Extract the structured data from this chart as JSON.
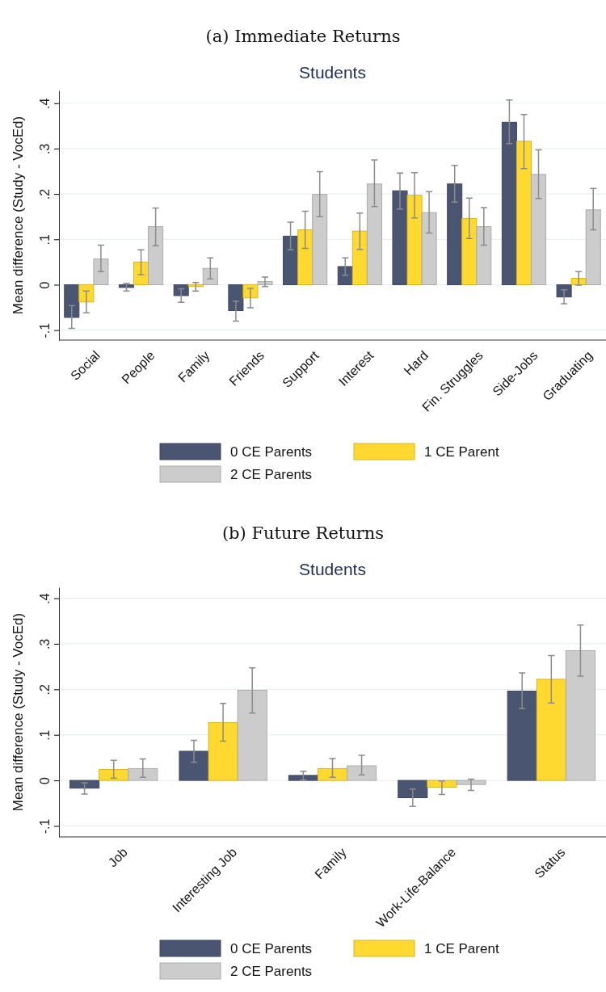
{
  "chart_data": [
    {
      "type": "bar",
      "title": "(a) Immediate Returns",
      "subtitle": "Students",
      "ylabel": "Mean difference (Study - VocEd)",
      "categories": [
        "Social",
        "People",
        "Family",
        "Friends",
        "Support",
        "Interest",
        "Hard",
        "Fin. Struggles",
        "Side-Jobs",
        "Graduating"
      ],
      "series": [
        {
          "name": "0 CE Parents",
          "color": "#4a5572",
          "values": [
            -0.072,
            -0.006,
            -0.024,
            -0.057,
            0.107,
            0.04,
            0.207,
            0.222,
            0.358,
            -0.027
          ],
          "errors": [
            [
              -0.096,
              -0.046
            ],
            [
              -0.014,
              0.003
            ],
            [
              -0.039,
              -0.009
            ],
            [
              -0.08,
              -0.036
            ],
            [
              0.077,
              0.138
            ],
            [
              0.021,
              0.059
            ],
            [
              0.167,
              0.246
            ],
            [
              0.182,
              0.263
            ],
            [
              0.311,
              0.407
            ],
            [
              -0.042,
              -0.011
            ]
          ]
        },
        {
          "name": "1 CE Parent",
          "color": "#ffd92f",
          "values": [
            -0.038,
            0.05,
            -0.004,
            -0.029,
            0.121,
            0.118,
            0.197,
            0.146,
            0.316,
            0.014
          ],
          "errors": [
            [
              -0.062,
              -0.014
            ],
            [
              0.022,
              0.077
            ],
            [
              -0.014,
              0.005
            ],
            [
              -0.051,
              -0.008
            ],
            [
              0.08,
              0.162
            ],
            [
              0.078,
              0.158
            ],
            [
              0.147,
              0.247
            ],
            [
              0.102,
              0.191
            ],
            [
              0.256,
              0.375
            ],
            [
              -0.001,
              0.029
            ]
          ]
        },
        {
          "name": "2 CE Parents",
          "color": "#cccccc",
          "values": [
            0.057,
            0.128,
            0.036,
            0.007,
            0.199,
            0.222,
            0.159,
            0.128,
            0.243,
            0.165
          ],
          "errors": [
            [
              0.029,
              0.087
            ],
            [
              0.086,
              0.169
            ],
            [
              0.013,
              0.059
            ],
            [
              -0.004,
              0.017
            ],
            [
              0.15,
              0.249
            ],
            [
              0.172,
              0.275
            ],
            [
              0.114,
              0.205
            ],
            [
              0.087,
              0.17
            ],
            [
              0.19,
              0.297
            ],
            [
              0.121,
              0.212
            ]
          ]
        }
      ],
      "ylim": [
        -0.122,
        0.428
      ],
      "yticks": [
        {
          "value": -0.1,
          "label": "-.1"
        },
        0,
        {
          "value": 0.1,
          "label": ".1"
        },
        {
          "value": 0.2,
          "label": ".2"
        },
        {
          "value": 0.3,
          "label": ".3"
        },
        {
          "value": 0.4,
          "label": ".4"
        }
      ],
      "grid": "y",
      "legend": "bottom"
    },
    {
      "type": "bar",
      "title": "(b) Future Returns",
      "subtitle": "Students",
      "ylabel": "Mean difference (Study - VocEd)",
      "categories": [
        "Job",
        "Interesting Job",
        "Family",
        "Work-Life-Balance",
        "Status"
      ],
      "series": [
        {
          "name": "0 CE Parents",
          "color": "#4a5572",
          "values": [
            -0.017,
            0.064,
            0.011,
            -0.038,
            0.196
          ],
          "errors": [
            [
              -0.03,
              -0.005
            ],
            [
              0.04,
              0.088
            ],
            [
              0.001,
              0.02
            ],
            [
              -0.057,
              -0.019
            ],
            [
              0.158,
              0.236
            ]
          ]
        },
        {
          "name": "1 CE Parent",
          "color": "#ffd92f",
          "values": [
            0.024,
            0.127,
            0.026,
            -0.015,
            0.222
          ],
          "errors": [
            [
              0.005,
              0.044
            ],
            [
              0.086,
              0.169
            ],
            [
              0.007,
              0.048
            ],
            [
              -0.031,
              -0.001
            ],
            [
              0.17,
              0.274
            ]
          ]
        },
        {
          "name": "2 CE Parents",
          "color": "#cccccc",
          "values": [
            0.026,
            0.198,
            0.032,
            -0.009,
            0.285
          ],
          "errors": [
            [
              0.007,
              0.047
            ],
            [
              0.148,
              0.247
            ],
            [
              0.012,
              0.055
            ],
            [
              -0.022,
              0.003
            ],
            [
              0.229,
              0.341
            ]
          ]
        }
      ],
      "ylim": [
        -0.124,
        0.424
      ],
      "yticks": [
        {
          "value": -0.1,
          "label": "-.1"
        },
        0,
        {
          "value": 0.1,
          "label": ".1"
        },
        {
          "value": 0.2,
          "label": ".2"
        },
        {
          "value": 0.3,
          "label": ".3"
        },
        {
          "value": 0.4,
          "label": ".4"
        }
      ],
      "grid": "y",
      "legend": "bottom"
    }
  ]
}
